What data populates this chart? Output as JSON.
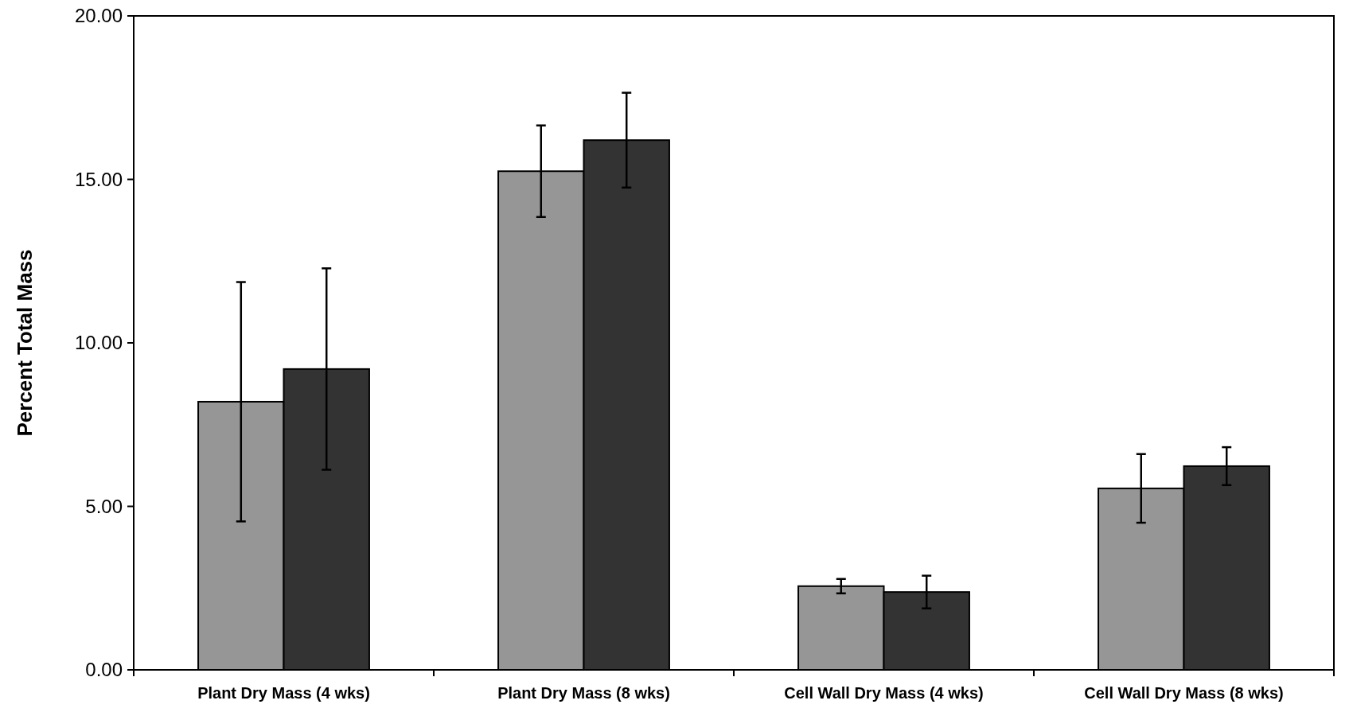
{
  "chart_data": {
    "type": "bar",
    "ylabel": "Percent Total Mass",
    "categories": [
      "Plant Dry Mass (4 wks)",
      "Plant Dry Mass (8 wks)",
      "Cell Wall Dry Mass (4 wks)",
      "Cell Wall Dry Mass (8 wks)"
    ],
    "series": [
      {
        "color": "#969696",
        "values": [
          8.2,
          15.25,
          2.56,
          5.55
        ],
        "errors": [
          3.66,
          1.4,
          0.22,
          1.05
        ]
      },
      {
        "color": "#333333",
        "values": [
          9.2,
          16.2,
          2.38,
          6.23
        ],
        "errors": [
          3.08,
          1.45,
          0.5,
          0.58
        ]
      }
    ],
    "ylim": [
      0,
      20
    ],
    "yticks": [
      {
        "value": 0,
        "label": "0.00"
      },
      {
        "value": 5,
        "label": "5.00"
      },
      {
        "value": 10,
        "label": "10.00"
      },
      {
        "value": 15,
        "label": "15.00"
      },
      {
        "value": 20,
        "label": "20.00"
      }
    ]
  }
}
